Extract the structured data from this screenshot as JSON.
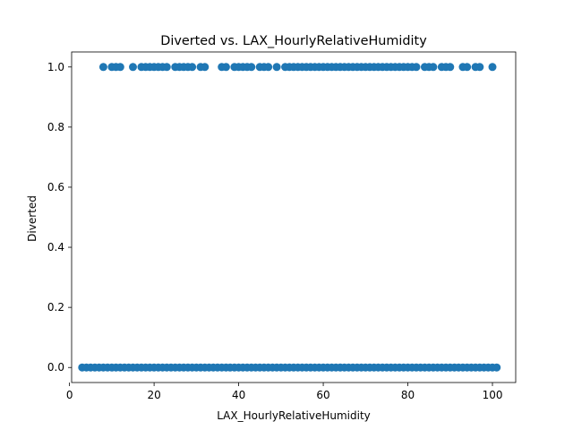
{
  "chart_data": {
    "type": "scatter",
    "title": "Diverted vs. LAX_HourlyRelativeHumidity",
    "xlabel": "LAX_HourlyRelativeHumidity",
    "ylabel": "Diverted",
    "xlim": [
      0.5,
      105.5
    ],
    "ylim": [
      -0.05,
      1.05
    ],
    "xticks": [
      0,
      20,
      40,
      60,
      80,
      100
    ],
    "xtick_labels": [
      "0",
      "20",
      "40",
      "60",
      "80",
      "100"
    ],
    "yticks": [
      0.0,
      0.2,
      0.4,
      0.6,
      0.8,
      1.0
    ],
    "ytick_labels": [
      "0.0",
      "0.2",
      "0.4",
      "0.6",
      "0.8",
      "1.0"
    ],
    "grid": false,
    "color": "#1f77b4",
    "series": [
      {
        "points": [
          [
            8,
            1
          ],
          [
            10,
            1
          ],
          [
            11,
            1
          ],
          [
            12,
            1
          ],
          [
            15,
            1
          ],
          [
            17,
            1
          ],
          [
            18,
            1
          ],
          [
            19,
            1
          ],
          [
            20,
            1
          ],
          [
            21,
            1
          ],
          [
            22,
            1
          ],
          [
            23,
            1
          ],
          [
            25,
            1
          ],
          [
            26,
            1
          ],
          [
            27,
            1
          ],
          [
            28,
            1
          ],
          [
            29,
            1
          ],
          [
            31,
            1
          ],
          [
            32,
            1
          ],
          [
            36,
            1
          ],
          [
            37,
            1
          ],
          [
            39,
            1
          ],
          [
            40,
            1
          ],
          [
            41,
            1
          ],
          [
            42,
            1
          ],
          [
            43,
            1
          ],
          [
            45,
            1
          ],
          [
            46,
            1
          ],
          [
            47,
            1
          ],
          [
            49,
            1
          ],
          [
            51,
            1
          ],
          [
            52,
            1
          ],
          [
            53,
            1
          ],
          [
            54,
            1
          ],
          [
            55,
            1
          ],
          [
            56,
            1
          ],
          [
            57,
            1
          ],
          [
            58,
            1
          ],
          [
            59,
            1
          ],
          [
            60,
            1
          ],
          [
            61,
            1
          ],
          [
            62,
            1
          ],
          [
            63,
            1
          ],
          [
            64,
            1
          ],
          [
            65,
            1
          ],
          [
            66,
            1
          ],
          [
            67,
            1
          ],
          [
            68,
            1
          ],
          [
            69,
            1
          ],
          [
            70,
            1
          ],
          [
            71,
            1
          ],
          [
            72,
            1
          ],
          [
            73,
            1
          ],
          [
            74,
            1
          ],
          [
            75,
            1
          ],
          [
            76,
            1
          ],
          [
            77,
            1
          ],
          [
            78,
            1
          ],
          [
            79,
            1
          ],
          [
            80,
            1
          ],
          [
            81,
            1
          ],
          [
            82,
            1
          ],
          [
            84,
            1
          ],
          [
            85,
            1
          ],
          [
            86,
            1
          ],
          [
            88,
            1
          ],
          [
            89,
            1
          ],
          [
            90,
            1
          ],
          [
            93,
            1
          ],
          [
            94,
            1
          ],
          [
            96,
            1
          ],
          [
            97,
            1
          ],
          [
            100,
            1
          ],
          [
            3,
            0
          ],
          [
            4,
            0
          ],
          [
            5,
            0
          ],
          [
            6,
            0
          ],
          [
            7,
            0
          ],
          [
            8,
            0
          ],
          [
            9,
            0
          ],
          [
            10,
            0
          ],
          [
            11,
            0
          ],
          [
            12,
            0
          ],
          [
            13,
            0
          ],
          [
            14,
            0
          ],
          [
            15,
            0
          ],
          [
            16,
            0
          ],
          [
            17,
            0
          ],
          [
            18,
            0
          ],
          [
            19,
            0
          ],
          [
            20,
            0
          ],
          [
            21,
            0
          ],
          [
            22,
            0
          ],
          [
            23,
            0
          ],
          [
            24,
            0
          ],
          [
            25,
            0
          ],
          [
            26,
            0
          ],
          [
            27,
            0
          ],
          [
            28,
            0
          ],
          [
            29,
            0
          ],
          [
            30,
            0
          ],
          [
            31,
            0
          ],
          [
            32,
            0
          ],
          [
            33,
            0
          ],
          [
            34,
            0
          ],
          [
            35,
            0
          ],
          [
            36,
            0
          ],
          [
            37,
            0
          ],
          [
            38,
            0
          ],
          [
            39,
            0
          ],
          [
            40,
            0
          ],
          [
            41,
            0
          ],
          [
            42,
            0
          ],
          [
            43,
            0
          ],
          [
            44,
            0
          ],
          [
            45,
            0
          ],
          [
            46,
            0
          ],
          [
            47,
            0
          ],
          [
            48,
            0
          ],
          [
            49,
            0
          ],
          [
            50,
            0
          ],
          [
            51,
            0
          ],
          [
            52,
            0
          ],
          [
            53,
            0
          ],
          [
            54,
            0
          ],
          [
            55,
            0
          ],
          [
            56,
            0
          ],
          [
            57,
            0
          ],
          [
            58,
            0
          ],
          [
            59,
            0
          ],
          [
            60,
            0
          ],
          [
            61,
            0
          ],
          [
            62,
            0
          ],
          [
            63,
            0
          ],
          [
            64,
            0
          ],
          [
            65,
            0
          ],
          [
            66,
            0
          ],
          [
            67,
            0
          ],
          [
            68,
            0
          ],
          [
            69,
            0
          ],
          [
            70,
            0
          ],
          [
            71,
            0
          ],
          [
            72,
            0
          ],
          [
            73,
            0
          ],
          [
            74,
            0
          ],
          [
            75,
            0
          ],
          [
            76,
            0
          ],
          [
            77,
            0
          ],
          [
            78,
            0
          ],
          [
            79,
            0
          ],
          [
            80,
            0
          ],
          [
            81,
            0
          ],
          [
            82,
            0
          ],
          [
            83,
            0
          ],
          [
            84,
            0
          ],
          [
            85,
            0
          ],
          [
            86,
            0
          ],
          [
            87,
            0
          ],
          [
            88,
            0
          ],
          [
            89,
            0
          ],
          [
            90,
            0
          ],
          [
            91,
            0
          ],
          [
            92,
            0
          ],
          [
            93,
            0
          ],
          [
            94,
            0
          ],
          [
            95,
            0
          ],
          [
            96,
            0
          ],
          [
            97,
            0
          ],
          [
            98,
            0
          ],
          [
            99,
            0
          ],
          [
            100,
            0
          ],
          [
            101,
            0
          ]
        ]
      }
    ]
  }
}
